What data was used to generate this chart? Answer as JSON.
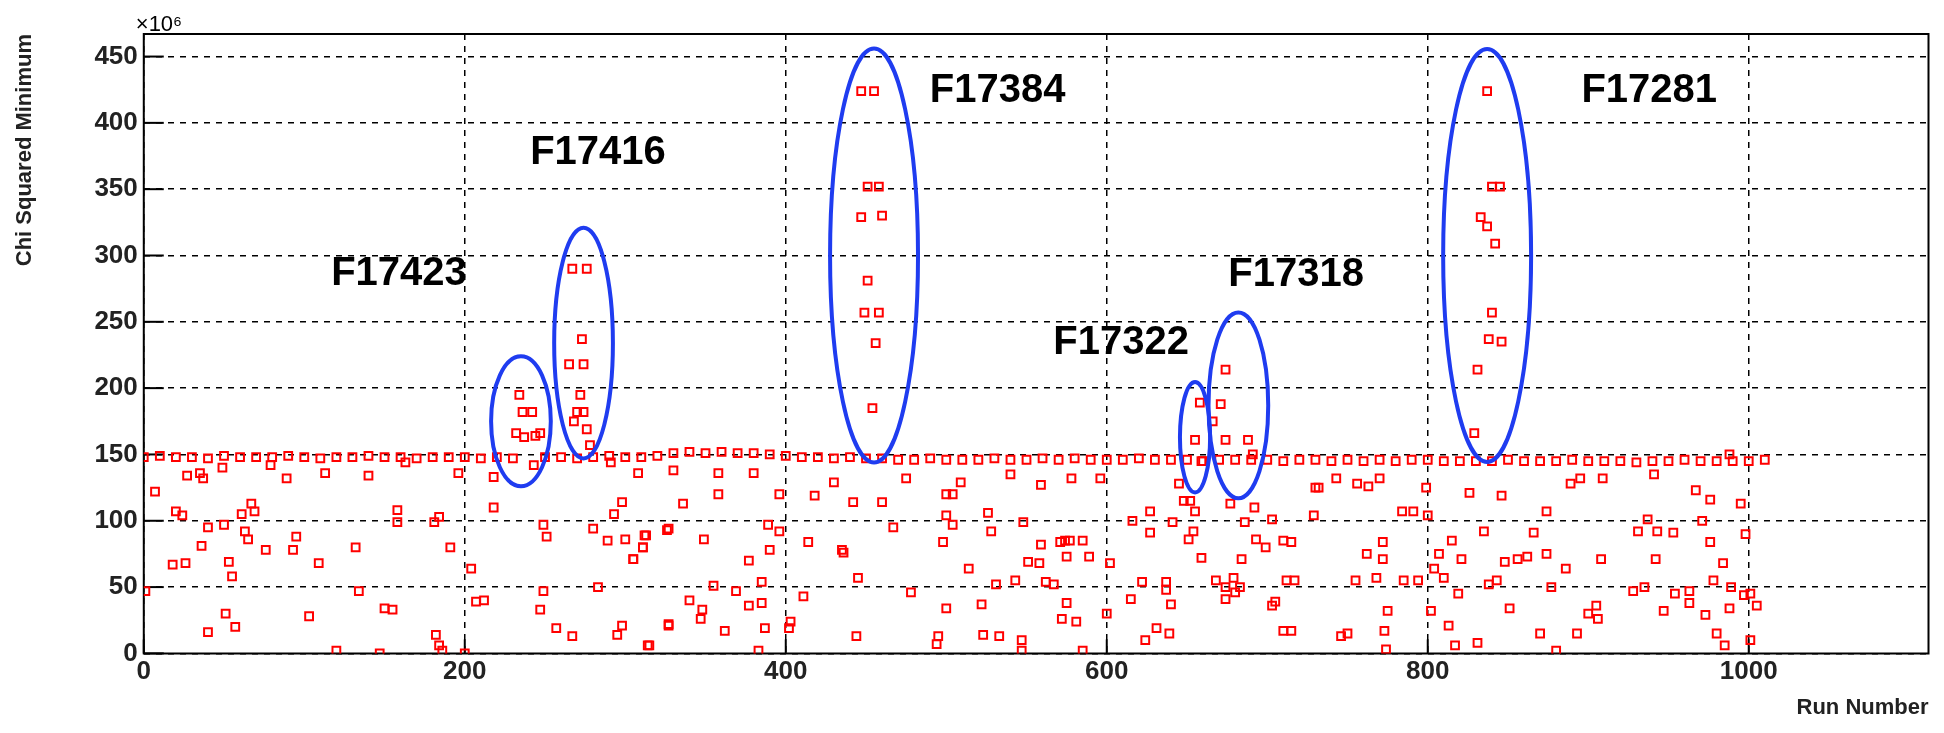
{
  "chart_data": {
    "type": "scatter",
    "xlabel": "Run Number",
    "ylabel": "Chi Squared Minimum",
    "xlim": [
      0,
      1112
    ],
    "ylim": [
      0,
      467
    ],
    "xticks": [
      0,
      200,
      400,
      600,
      800,
      1000
    ],
    "yticks": [
      0,
      50,
      100,
      150,
      200,
      250,
      300,
      350,
      400,
      450
    ],
    "grid": true,
    "marker": "square",
    "legend": false,
    "annotations": [
      "×10⁶",
      "F17423",
      "F17416",
      "F17384",
      "F17322",
      "F17318",
      "F17281"
    ],
    "series": [
      {
        "color": "#ff0000",
        "x": [
          0,
          10,
          20,
          30,
          40,
          50,
          60,
          70,
          80,
          90,
          100,
          110,
          120,
          130,
          140,
          150,
          160,
          170,
          180,
          190,
          200,
          210,
          220,
          230,
          250,
          260,
          270,
          280,
          290,
          300,
          310,
          320,
          330,
          340,
          350,
          360,
          370,
          380,
          390,
          400,
          410,
          420,
          430,
          440,
          450,
          460,
          470,
          480,
          490,
          500,
          510,
          520,
          530,
          540,
          550,
          560,
          570,
          580,
          590,
          600,
          610,
          620,
          630,
          640,
          650,
          660,
          670,
          680,
          690,
          700,
          710,
          720,
          730,
          740,
          750,
          760,
          770,
          780,
          790,
          800,
          810,
          820,
          830,
          840,
          850,
          860,
          870,
          880,
          890,
          900,
          910,
          920,
          930,
          940,
          950,
          960,
          970,
          980,
          990,
          1000,
          1010,
          234,
          236,
          242,
          232,
          237,
          244,
          247,
          243,
          267,
          276,
          273,
          265,
          274,
          272,
          270,
          274,
          268,
          276,
          278,
          447,
          455,
          451,
          458,
          447,
          460,
          451,
          449,
          458,
          456,
          454,
          658,
          655,
          659,
          652,
          674,
          671,
          666,
          674,
          688,
          691,
          677,
          837,
          840,
          845,
          833,
          837,
          842,
          840,
          838,
          846,
          831,
          829,
          1,
          7,
          20,
          24,
          18,
          26,
          27,
          37,
          35,
          49,
          40,
          36,
          50,
          53,
          55,
          51,
          40,
          57,
          61,
          67,
          69,
          63,
          65,
          76,
          79,
          89,
          95,
          93,
          109,
          103,
          113,
          120,
          132,
          134,
          140,
          147,
          150,
          155,
          158,
          158,
          163,
          181,
          184,
          182,
          184,
          186,
          191,
          196,
          200,
          204,
          207,
          212,
          218,
          218,
          249,
          251,
          249,
          247,
          257,
          267,
          283,
          280,
          289,
          298,
          293,
          300,
          305,
          311,
          313,
          295,
          298,
          314,
          326,
          327,
          291,
          308,
          312,
          311,
          305,
          327,
          330,
          336,
          349,
          358,
          358,
          340,
          348,
          347,
          355,
          369,
          377,
          380,
          389,
          390,
          385,
          385,
          377,
          387,
          362,
          327,
          315,
          383,
          396,
          396,
          403,
          402,
          414,
          411,
          418,
          430,
          435,
          436,
          442,
          445,
          444,
          460,
          467,
          475,
          478,
          500,
          504,
          500,
          504,
          498,
          500,
          495,
          494,
          509,
          514,
          522,
          523,
          526,
          528,
          531,
          533,
          543,
          548,
          551,
          558,
          559,
          547,
          547,
          540,
          559,
          562,
          567,
          571,
          574,
          577,
          585,
          575,
          589,
          575,
          572,
          581,
          585,
          578,
          596,
          602,
          600,
          615,
          622,
          616,
          627,
          627,
          624,
          631,
          637,
          637,
          640,
          639,
          641,
          645,
          648,
          651,
          654,
          655,
          659,
          668,
          674,
          679,
          680,
          683,
          674,
          684,
          686,
          692,
          693,
          699,
          703,
          703,
          705,
          710,
          712,
          710,
          730,
          729,
          715,
          717,
          715,
          732,
          743,
          756,
          763,
          770,
          755,
          746,
          750,
          762,
          772,
          772,
          768,
          775,
          773,
          774,
          784,
          791,
          785,
          794,
          799,
          800,
          802,
          804,
          807,
          810,
          815,
          813,
          817,
          819,
          821,
          826,
          835,
          831,
          838,
          843,
          846,
          848,
          851,
          856,
          862,
          866,
          874,
          874,
          877,
          870,
          880,
          886,
          889,
          895,
          893,
          900,
          905,
          906,
          908,
          909,
          928,
          935,
          931,
          937,
          943,
          953,
          942,
          941,
          947,
          954,
          963,
          963,
          967,
          976,
          971,
          976,
          978,
          984,
          973,
          980,
          985,
          989,
          988,
          995,
          998,
          997,
          1001,
          1005,
          1001,
          988
        ],
        "values": [
          148,
          149,
          148,
          148,
          147,
          149,
          148,
          148,
          148,
          149,
          148,
          147,
          148,
          148,
          149,
          148,
          148,
          147,
          148,
          148,
          148,
          147,
          148,
          147,
          148,
          148,
          147,
          148,
          149,
          148,
          148,
          149,
          151,
          152,
          151,
          152,
          151,
          151,
          150,
          149,
          148,
          148,
          147,
          148,
          147,
          147,
          146,
          146,
          147,
          146,
          146,
          146,
          147,
          146,
          146,
          147,
          146,
          147,
          146,
          146,
          146,
          147,
          146,
          146,
          146,
          145,
          146,
          146,
          146,
          146,
          145,
          146,
          146,
          145,
          146,
          145,
          146,
          145,
          146,
          146,
          145,
          145,
          145,
          145,
          146,
          145,
          145,
          145,
          146,
          145,
          145,
          145,
          144,
          145,
          145,
          146,
          145,
          145,
          145,
          145,
          146,
          195,
          182,
          182,
          166,
          163,
          164,
          166,
          142,
          290,
          290,
          237,
          218,
          218,
          195,
          182,
          182,
          175,
          169,
          157,
          424,
          424,
          352,
          352,
          329,
          330,
          281,
          257,
          257,
          234,
          185,
          189,
          161,
          145,
          115,
          214,
          188,
          175,
          161,
          161,
          150,
          113,
          424,
          352,
          352,
          329,
          322,
          309,
          257,
          237,
          235,
          214,
          166,
          47,
          122,
          107,
          104,
          67,
          68,
          134,
          132,
          136,
          140,
          95,
          81,
          97,
          69,
          58,
          30,
          16,
          20,
          105,
          113,
          107,
          92,
          86,
          78,
          142,
          132,
          88,
          78,
          68,
          28,
          136,
          2,
          80,
          47,
          134,
          0,
          34,
          33,
          108,
          99,
          144,
          99,
          103,
          14,
          6,
          2,
          80,
          136,
          0,
          64,
          39,
          40,
          133,
          110,
          97,
          88,
          47,
          33,
          19,
          13,
          50,
          94,
          85,
          114,
          105,
          86,
          71,
          80,
          89,
          14,
          21,
          6,
          93,
          22,
          144,
          136,
          89,
          80,
          71,
          94,
          138,
          113,
          86,
          136,
          120,
          40,
          33,
          26,
          51,
          47,
          70,
          136,
          97,
          78,
          54,
          38,
          36,
          19,
          17,
          21,
          6,
          2,
          120,
          92,
          24,
          19,
          84,
          43,
          119,
          129,
          78,
          76,
          114,
          57,
          13,
          114,
          95,
          132,
          46,
          120,
          120,
          104,
          97,
          84,
          34,
          13,
          7,
          129,
          64,
          37,
          14,
          106,
          92,
          52,
          13,
          55,
          99,
          69,
          68,
          82,
          10,
          2,
          135,
          127,
          54,
          52,
          84,
          85,
          85,
          85,
          73,
          73,
          38,
          26,
          24,
          2,
          132,
          132,
          68,
          30,
          41,
          54,
          100,
          107,
          91,
          10,
          19,
          54,
          48,
          37,
          15,
          99,
          128,
          115,
          86,
          92,
          107,
          72,
          55,
          50,
          57,
          46,
          50,
          41,
          71,
          99,
          110,
          86,
          80,
          101,
          36,
          39,
          85,
          55,
          17,
          125,
          104,
          84,
          55,
          17,
          125,
          132,
          128,
          126,
          132,
          55,
          13,
          15,
          75,
          84,
          71,
          57,
          32,
          17,
          3,
          107,
          107,
          55,
          55,
          125,
          104,
          32,
          64,
          75,
          57,
          85,
          21,
          6,
          45,
          71,
          121,
          92,
          8,
          52,
          55,
          119,
          69,
          34,
          71,
          73,
          91,
          107,
          75,
          50,
          15,
          2,
          64,
          128,
          132,
          15,
          30,
          36,
          26,
          71,
          132,
          47,
          50,
          92,
          101,
          92,
          91,
          71,
          135,
          32,
          45,
          47,
          38,
          123,
          116,
          100,
          84,
          55,
          68,
          29,
          15,
          6,
          50,
          34,
          113,
          90,
          44,
          45,
          36,
          10,
          150
        ]
      }
    ]
  }
}
